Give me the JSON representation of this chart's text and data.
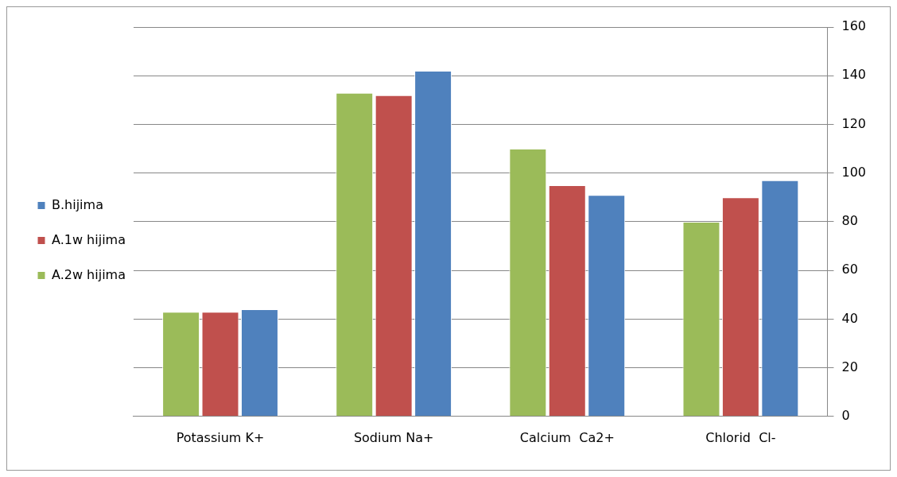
{
  "chart_data": {
    "type": "bar",
    "categories": [
      "Potassium K+",
      "Sodium Na+",
      "Calcium  Ca2+",
      "Chlorid  Cl-"
    ],
    "series": [
      {
        "name": "A.2w hijima",
        "color": "#9bbb59",
        "values": [
          43,
          133,
          110,
          80
        ]
      },
      {
        "name": "A.1w hijima",
        "color": "#c0504d",
        "values": [
          43,
          132,
          95,
          90
        ]
      },
      {
        "name": "B.hijima",
        "color": "#4f81bd",
        "values": [
          44,
          142,
          91,
          97
        ]
      }
    ],
    "ylim": [
      0,
      160
    ],
    "yticks": [
      0,
      20,
      40,
      60,
      80,
      100,
      120,
      140,
      160
    ],
    "grid": "y",
    "legend": "left"
  }
}
